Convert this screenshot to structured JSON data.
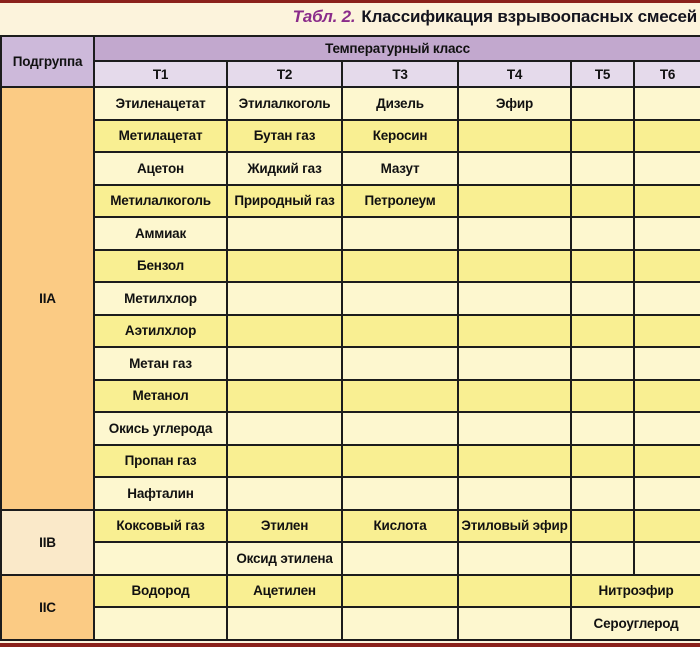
{
  "title": {
    "prefix": "Табл. 2.",
    "text": "Классификация взрывоопасных смесей"
  },
  "table": {
    "corner_header": "Подгруппа",
    "group_header": "Температурный класс",
    "class_headers": [
      "T1",
      "T2",
      "T3",
      "T4",
      "T5",
      "T6"
    ],
    "subgroups": [
      {
        "label": "IIA",
        "rows": [
          [
            "Этиленацетат",
            "Этилалкоголь",
            "Дизель",
            "Эфир",
            "",
            ""
          ],
          [
            "Метилацетат",
            "Бутан газ",
            "Керосин",
            "",
            "",
            ""
          ],
          [
            "Ацетон",
            "Жидкий газ",
            "Мазут",
            "",
            "",
            ""
          ],
          [
            "Метилалкоголь",
            "Природный газ",
            "Петролеум",
            "",
            "",
            ""
          ],
          [
            "Аммиак",
            "",
            "",
            "",
            "",
            ""
          ],
          [
            "Бензол",
            "",
            "",
            "",
            "",
            ""
          ],
          [
            "Метилхлор",
            "",
            "",
            "",
            "",
            ""
          ],
          [
            "Аэтилхлор",
            "",
            "",
            "",
            "",
            ""
          ],
          [
            "Метан газ",
            "",
            "",
            "",
            "",
            ""
          ],
          [
            "Метанол",
            "",
            "",
            "",
            "",
            ""
          ],
          [
            "Окись углерода",
            "",
            "",
            "",
            "",
            ""
          ],
          [
            "Пропан газ",
            "",
            "",
            "",
            "",
            ""
          ],
          [
            "Нафталин",
            "",
            "",
            "",
            "",
            ""
          ]
        ]
      },
      {
        "label": "IIB",
        "rows": [
          [
            "Коксовый газ",
            "Этилен",
            "Кислота",
            "Этиловый эфир",
            "",
            ""
          ],
          [
            "",
            "Оксид этилена",
            "",
            "",
            "",
            ""
          ]
        ]
      },
      {
        "label": "IIC",
        "merge_last_two": true,
        "rows": [
          [
            "Водород",
            "Ацетилен",
            "",
            "",
            "Нитроэфир"
          ],
          [
            "",
            "",
            "",
            "",
            "Сероуглерод"
          ]
        ]
      }
    ]
  },
  "colors": {
    "page_background": "#FCF3DC",
    "rule": "#8A211B",
    "title_prefix": "#8A2B8A",
    "title_text": "#14141E",
    "header_group_bg": "#C2A8CE",
    "header_class_bg": "#E5DAEB",
    "corner_bg": "#CDB9DA",
    "row_pale_bg": "#FDF7CF",
    "row_bright_bg": "#F9EF92",
    "border": "#1C1C1C",
    "subgroup_colors": [
      "#FBCB84",
      "#FAE9C9",
      "#FBCB84"
    ]
  }
}
